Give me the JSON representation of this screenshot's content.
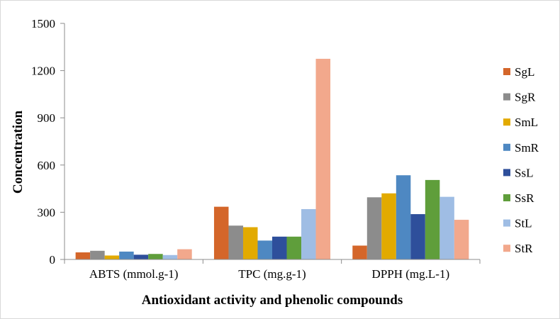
{
  "chart_data": {
    "type": "bar",
    "title": "",
    "xlabel": "Antioxidant activity and phenolic compounds",
    "ylabel": "Concentration",
    "ylim": [
      0,
      1500
    ],
    "yticks": [
      0,
      300,
      600,
      900,
      1200,
      1500
    ],
    "grid": false,
    "legend": "right",
    "categories": [
      "ABTS (mmol.g-1)",
      "TPC (mg.g-1)",
      "DPPH (mg.L-1)"
    ],
    "series": [
      {
        "name": "SgL",
        "color": "#d4662a",
        "values": [
          45,
          335,
          88
        ]
      },
      {
        "name": "SgR",
        "color": "#8c8c8c",
        "values": [
          55,
          215,
          395
        ]
      },
      {
        "name": "SmL",
        "color": "#e2aa00",
        "values": [
          25,
          205,
          420
        ]
      },
      {
        "name": "SmR",
        "color": "#4e88c2",
        "values": [
          50,
          120,
          535
        ]
      },
      {
        "name": "SsL",
        "color": "#2e4f9b",
        "values": [
          30,
          145,
          288
        ]
      },
      {
        "name": "SsR",
        "color": "#5f9e3b",
        "values": [
          35,
          145,
          505
        ]
      },
      {
        "name": "StL",
        "color": "#9fbde4",
        "values": [
          28,
          320,
          398
        ]
      },
      {
        "name": "StR",
        "color": "#f2a88c",
        "values": [
          65,
          1275,
          252
        ]
      }
    ]
  }
}
